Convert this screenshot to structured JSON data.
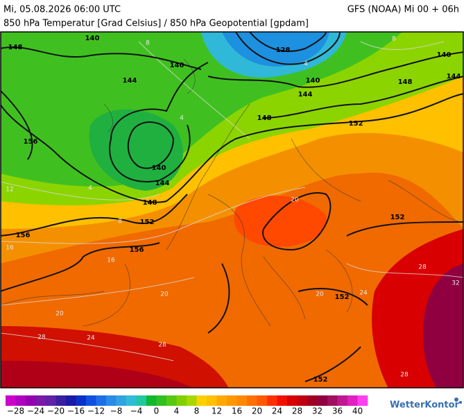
{
  "header": {
    "title_left": "Mi, 05.08.2026 06:00 UTC",
    "title_right": "GFS (NOAA) Mi 00 + 06h",
    "subtitle": "850 hPa Temperatur [Grad Celsius] / 850 hPa Geopotential [gpdam]"
  },
  "map": {
    "geopotential_labels": [
      148,
      140,
      128,
      140,
      144,
      140,
      144,
      140,
      144,
      148,
      148,
      152,
      156,
      140,
      144,
      148,
      152,
      156,
      156,
      152,
      152,
      152
    ],
    "temperature_labels": [
      8,
      8,
      4,
      4,
      4,
      8,
      12,
      16,
      16,
      20,
      20,
      20,
      24,
      28,
      28,
      24,
      28,
      32,
      28,
      20
    ]
  },
  "colorbar": {
    "colors": [
      "#cc00cc",
      "#b000c0",
      "#9400b0",
      "#7a18a8",
      "#6020a8",
      "#3a1ea0",
      "#1a1aa8",
      "#0a30c8",
      "#1050e0",
      "#1e6ee8",
      "#2a8ae8",
      "#30a4e0",
      "#30bcd8",
      "#20c8a0",
      "#10b830",
      "#30c020",
      "#58c810",
      "#80d000",
      "#a8d800",
      "#ffd000",
      "#ffc000",
      "#ffa800",
      "#ff9800",
      "#ff8800",
      "#ff7000",
      "#ff5800",
      "#ff3000",
      "#f01000",
      "#d80000",
      "#c00010",
      "#a00020",
      "#900040",
      "#a01060",
      "#c01890",
      "#e020c0",
      "#ff40f0"
    ],
    "tick_labels": [
      "−28",
      "−24",
      "−20",
      "−16",
      "−12",
      "−8",
      "−4",
      "0",
      "4",
      "8",
      "12",
      "16",
      "20",
      "24",
      "28",
      "32",
      "36",
      "40"
    ]
  },
  "brand": "WetterKontor"
}
